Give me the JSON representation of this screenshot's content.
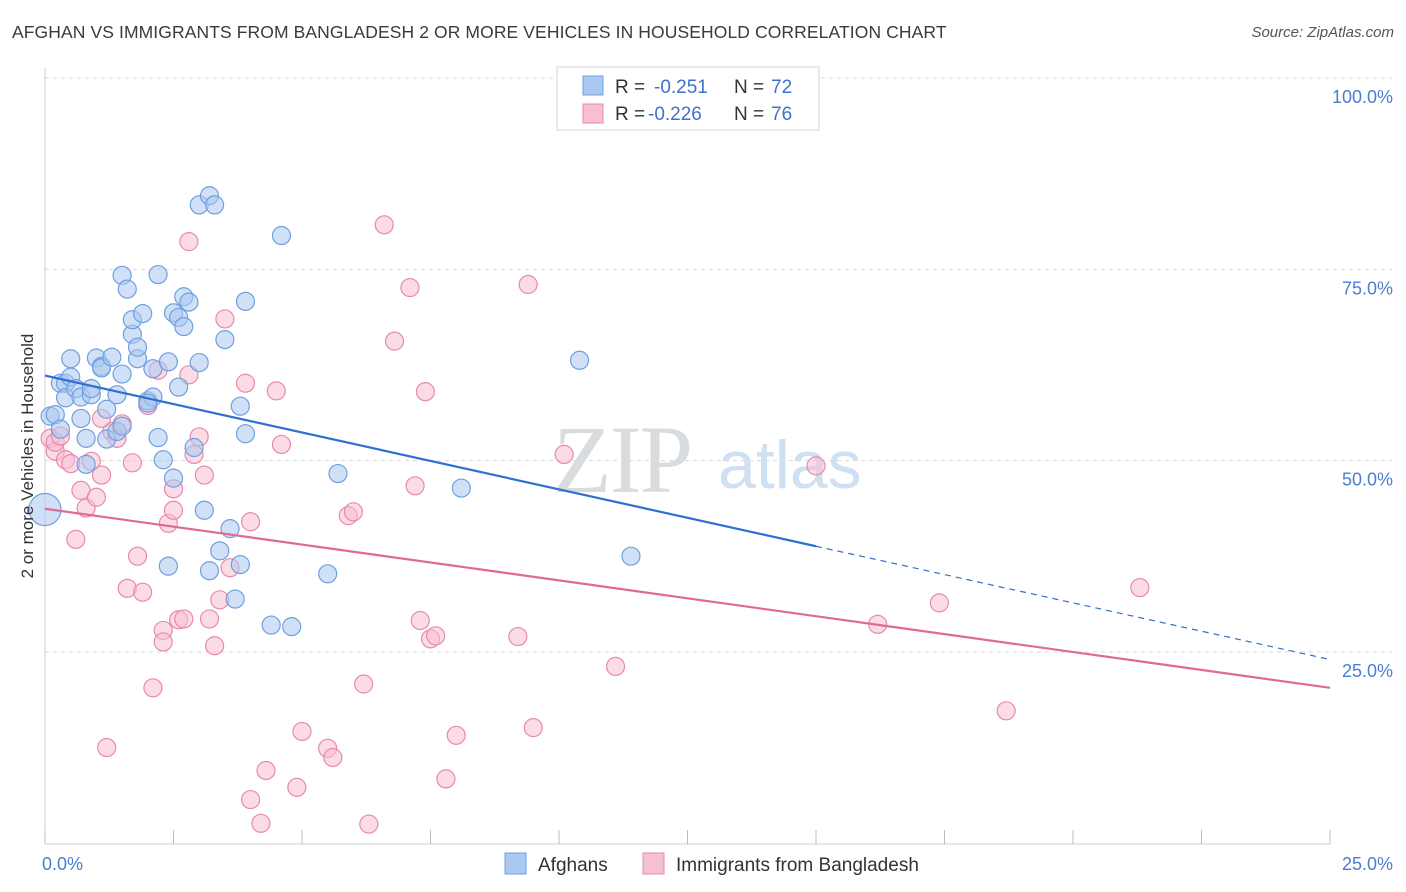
{
  "header": {
    "title": "AFGHAN VS IMMIGRANTS FROM BANGLADESH 2 OR MORE VEHICLES IN HOUSEHOLD CORRELATION CHART",
    "source": "Source: ZipAtlas.com"
  },
  "watermark": {
    "zip": "ZIP",
    "atlas": "atlas"
  },
  "legend_top": {
    "rows": [
      {
        "r_label": "R =",
        "r_value": "-0.251",
        "n_label": "N =",
        "n_value": "72"
      },
      {
        "r_label": "R =",
        "r_value": "-0.226",
        "n_label": "N =",
        "n_value": "76"
      }
    ]
  },
  "legend_bottom": {
    "items": [
      "Afghans",
      "Immigrants from Bangladesh"
    ]
  },
  "colors": {
    "afghan_fill": "#aac8f0",
    "afghan_stroke": "#6f9fe0",
    "afghan_line": "#2f6fd0",
    "bangla_fill": "#f7c0d2",
    "bangla_stroke": "#e88aaa",
    "bangla_line": "#e06a94",
    "grid": "#d8d8d8"
  },
  "chart_data": {
    "type": "scatter",
    "title": "AFGHAN VS IMMIGRANTS FROM BANGLADESH 2 OR MORE VEHICLES IN HOUSEHOLD CORRELATION CHART",
    "xlabel": "",
    "ylabel": "2 or more Vehicles in Household",
    "xlim": [
      0,
      25
    ],
    "ylim": [
      0,
      105
    ],
    "x_tick_labels": [
      "0.0%",
      "25.0%"
    ],
    "y_tick_values": [
      25,
      50,
      75,
      100
    ],
    "y_tick_labels": [
      "25.0%",
      "50.0%",
      "75.0%",
      "100.0%"
    ],
    "grid": true,
    "series": [
      {
        "name": "Afghans",
        "r": -0.251,
        "n": 72,
        "trend": {
          "x0": 0,
          "y0": 63.6,
          "x1": 15,
          "y1": 41.3,
          "dash_to_x": 25,
          "dash_to_y": 26.5
        },
        "points": [
          [
            0.1,
            58.3
          ],
          [
            0.2,
            58.5
          ],
          [
            0.3,
            56.6
          ],
          [
            0.3,
            62.6
          ],
          [
            0.4,
            62.6
          ],
          [
            0.4,
            60.7
          ],
          [
            0.5,
            65.8
          ],
          [
            0.5,
            63.4
          ],
          [
            0.6,
            61.9
          ],
          [
            0.7,
            60.8
          ],
          [
            0.7,
            58.0
          ],
          [
            0.8,
            55.4
          ],
          [
            0.9,
            61.1
          ],
          [
            0.9,
            61.9
          ],
          [
            1.0,
            65.9
          ],
          [
            1.1,
            64.8
          ],
          [
            1.1,
            64.6
          ],
          [
            1.2,
            59.2
          ],
          [
            1.2,
            55.3
          ],
          [
            1.3,
            66.0
          ],
          [
            1.4,
            61.1
          ],
          [
            1.4,
            56.3
          ],
          [
            1.5,
            63.8
          ],
          [
            1.5,
            76.7
          ],
          [
            1.6,
            74.9
          ],
          [
            1.7,
            69.0
          ],
          [
            1.7,
            70.9
          ],
          [
            1.8,
            65.8
          ],
          [
            1.8,
            67.3
          ],
          [
            1.9,
            71.7
          ],
          [
            2.0,
            60.3
          ],
          [
            2.1,
            64.5
          ],
          [
            2.1,
            60.8
          ],
          [
            2.2,
            76.8
          ],
          [
            2.2,
            55.5
          ],
          [
            2.3,
            52.6
          ],
          [
            2.4,
            38.7
          ],
          [
            2.4,
            65.4
          ],
          [
            2.5,
            50.2
          ],
          [
            2.5,
            71.8
          ],
          [
            2.6,
            62.1
          ],
          [
            2.6,
            71.2
          ],
          [
            2.7,
            70.0
          ],
          [
            2.7,
            73.9
          ],
          [
            2.8,
            73.2
          ],
          [
            2.9,
            54.2
          ],
          [
            3.0,
            65.3
          ],
          [
            3.0,
            85.9
          ],
          [
            3.1,
            46.0
          ],
          [
            3.2,
            38.1
          ],
          [
            3.2,
            87.1
          ],
          [
            3.3,
            85.9
          ],
          [
            3.4,
            40.7
          ],
          [
            3.5,
            68.3
          ],
          [
            3.6,
            43.6
          ],
          [
            3.7,
            34.4
          ],
          [
            3.8,
            38.9
          ],
          [
            3.8,
            59.6
          ],
          [
            3.9,
            56.0
          ],
          [
            3.9,
            73.3
          ],
          [
            4.4,
            31.0
          ],
          [
            4.6,
            81.9
          ],
          [
            4.8,
            30.8
          ],
          [
            5.5,
            37.7
          ],
          [
            5.7,
            50.8
          ],
          [
            8.1,
            48.9
          ],
          [
            10.4,
            65.6
          ],
          [
            11.4,
            40.0
          ],
          [
            0.0,
            46.1
          ],
          [
            2.0,
            60.0
          ],
          [
            1.5,
            57.0
          ],
          [
            0.8,
            52.0
          ]
        ]
      },
      {
        "name": "Immigrants from Bangladesh",
        "r": -0.226,
        "n": 76,
        "trend": {
          "x0": 0,
          "y0": 46.2,
          "x1": 25,
          "y1": 22.8
        },
        "points": [
          [
            0.1,
            55.4
          ],
          [
            0.2,
            53.7
          ],
          [
            0.2,
            54.9
          ],
          [
            0.3,
            55.7
          ],
          [
            0.4,
            52.6
          ],
          [
            0.5,
            52.1
          ],
          [
            0.6,
            42.2
          ],
          [
            0.7,
            48.6
          ],
          [
            0.8,
            46.3
          ],
          [
            0.9,
            52.4
          ],
          [
            1.0,
            47.7
          ],
          [
            1.1,
            50.6
          ],
          [
            1.2,
            15.0
          ],
          [
            1.3,
            56.3
          ],
          [
            1.4,
            55.4
          ],
          [
            1.5,
            57.3
          ],
          [
            1.6,
            35.8
          ],
          [
            1.7,
            52.2
          ],
          [
            1.8,
            40.0
          ],
          [
            1.9,
            35.3
          ],
          [
            2.0,
            59.7
          ],
          [
            2.1,
            22.8
          ],
          [
            2.2,
            64.3
          ],
          [
            2.3,
            30.3
          ],
          [
            2.3,
            28.8
          ],
          [
            2.4,
            44.3
          ],
          [
            2.5,
            48.8
          ],
          [
            2.6,
            31.7
          ],
          [
            2.7,
            31.8
          ],
          [
            2.8,
            63.7
          ],
          [
            2.8,
            81.1
          ],
          [
            2.9,
            53.3
          ],
          [
            3.0,
            55.6
          ],
          [
            3.1,
            50.6
          ],
          [
            3.2,
            31.8
          ],
          [
            3.3,
            28.3
          ],
          [
            3.4,
            34.3
          ],
          [
            3.5,
            71.0
          ],
          [
            3.6,
            38.5
          ],
          [
            3.9,
            62.6
          ],
          [
            4.0,
            44.5
          ],
          [
            4.0,
            8.2
          ],
          [
            4.2,
            5.1
          ],
          [
            4.3,
            12.0
          ],
          [
            4.5,
            61.6
          ],
          [
            4.6,
            54.6
          ],
          [
            4.9,
            9.8
          ],
          [
            5.0,
            17.1
          ],
          [
            5.5,
            14.9
          ],
          [
            5.6,
            13.7
          ],
          [
            5.9,
            45.3
          ],
          [
            6.0,
            45.8
          ],
          [
            6.2,
            23.3
          ],
          [
            6.3,
            5.0
          ],
          [
            6.6,
            83.3
          ],
          [
            6.8,
            68.1
          ],
          [
            7.1,
            75.1
          ],
          [
            7.2,
            49.2
          ],
          [
            7.3,
            31.6
          ],
          [
            7.4,
            61.5
          ],
          [
            7.5,
            29.2
          ],
          [
            7.6,
            29.6
          ],
          [
            7.8,
            10.9
          ],
          [
            8.0,
            16.6
          ],
          [
            9.2,
            29.5
          ],
          [
            9.4,
            75.5
          ],
          [
            9.5,
            17.6
          ],
          [
            10.1,
            53.3
          ],
          [
            11.1,
            25.6
          ],
          [
            15.0,
            51.8
          ],
          [
            16.2,
            31.1
          ],
          [
            17.4,
            33.9
          ],
          [
            18.7,
            19.8
          ],
          [
            21.3,
            35.9
          ],
          [
            2.5,
            46.0
          ],
          [
            1.1,
            58.0
          ]
        ]
      }
    ]
  }
}
